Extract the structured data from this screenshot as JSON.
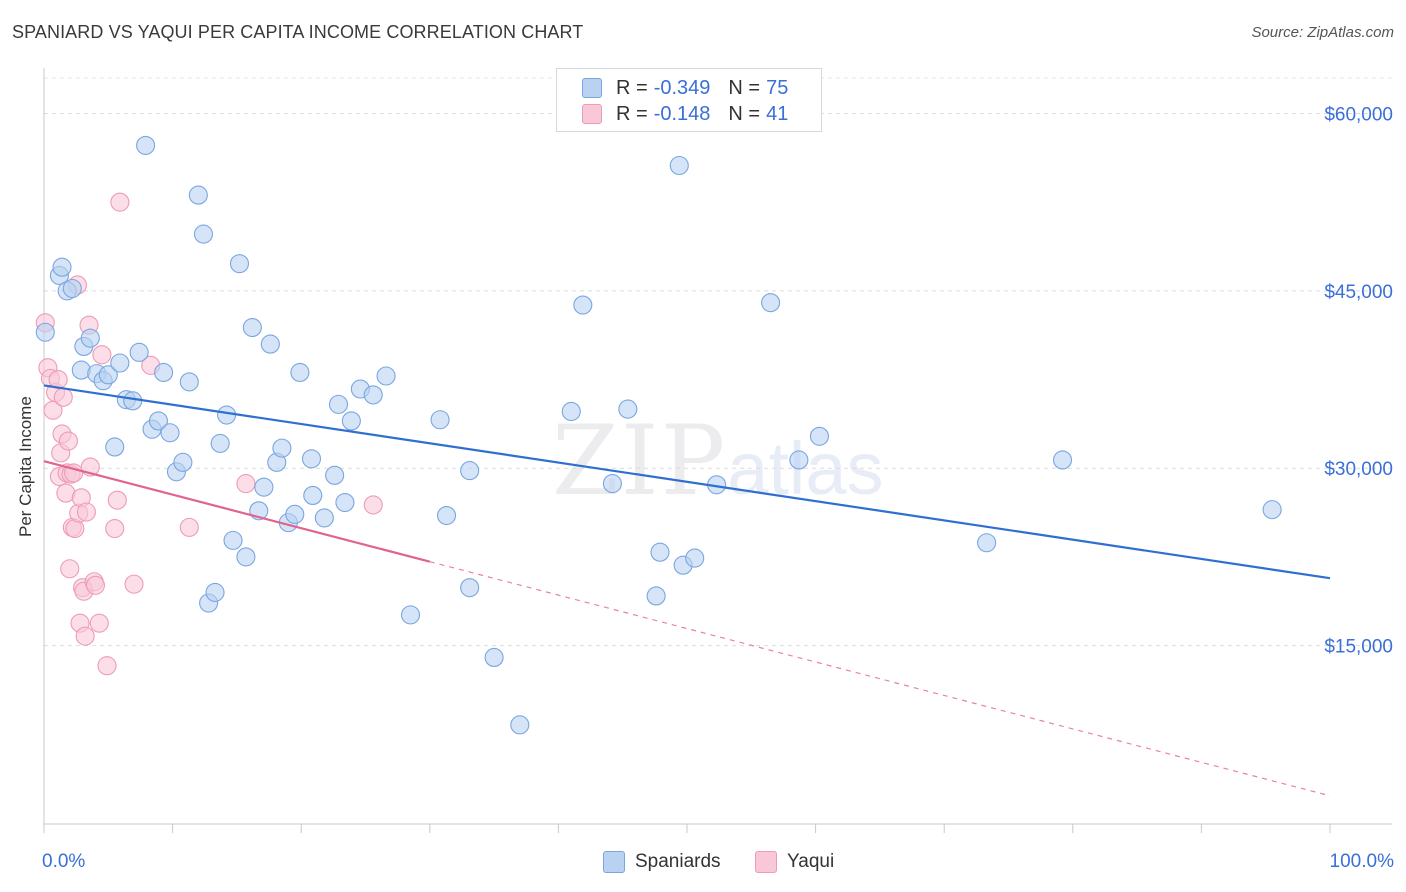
{
  "header": {
    "title": "SPANIARD VS YAQUI PER CAPITA INCOME CORRELATION CHART",
    "source": "Source: ZipAtlas.com"
  },
  "watermark": {
    "zip": "ZIP",
    "atlas": "atlas"
  },
  "legend": {
    "rows": [
      {
        "r_label": "R = ",
        "r_value": "-0.349",
        "n_label": "N = ",
        "n_value": "75",
        "color": "#a9c8f0"
      },
      {
        "r_label": "R = ",
        "r_value": "-0.148",
        "n_label": "N = ",
        "n_value": "41",
        "color": "#f5b8cc"
      }
    ]
  },
  "chart_data": {
    "type": "scatter",
    "title": "SPANIARD VS YAQUI PER CAPITA INCOME CORRELATION CHART",
    "ylabel": "Per Capita Income",
    "xlim": [
      0,
      100
    ],
    "ylim": [
      0,
      63000
    ],
    "x_tick_labels": [
      "0.0%",
      "100.0%"
    ],
    "y_ticks": [
      {
        "value": 15000,
        "label": "$15,000"
      },
      {
        "value": 30000,
        "label": "$30,000"
      },
      {
        "value": 45000,
        "label": "$45,000"
      },
      {
        "value": 60000,
        "label": "$60,000"
      }
    ],
    "grid": true,
    "legend_position": "bottom-center",
    "series": [
      {
        "name": "Spaniards",
        "color": "#7aa6e0",
        "fill": "#b9d2f2",
        "trend": {
          "x0": 0,
          "y0": 37000,
          "x1": 100,
          "y1": 20700,
          "color": "#2e6fd0"
        },
        "points": [
          [
            0.1,
            41500
          ],
          [
            1.2,
            46300
          ],
          [
            1.4,
            47000
          ],
          [
            1.8,
            45000
          ],
          [
            2.2,
            45200
          ],
          [
            2.9,
            38300
          ],
          [
            3.1,
            40300
          ],
          [
            3.6,
            41000
          ],
          [
            4.1,
            38000
          ],
          [
            4.6,
            37400
          ],
          [
            5.0,
            37900
          ],
          [
            5.5,
            31800
          ],
          [
            5.9,
            38900
          ],
          [
            6.4,
            35800
          ],
          [
            6.9,
            35700
          ],
          [
            7.4,
            39800
          ],
          [
            7.9,
            57300
          ],
          [
            8.4,
            33300
          ],
          [
            8.9,
            34000
          ],
          [
            9.3,
            38100
          ],
          [
            9.8,
            33000
          ],
          [
            10.3,
            29700
          ],
          [
            10.8,
            30500
          ],
          [
            11.3,
            37300
          ],
          [
            12.0,
            53100
          ],
          [
            12.4,
            49800
          ],
          [
            12.8,
            18600
          ],
          [
            13.3,
            19500
          ],
          [
            13.7,
            32100
          ],
          [
            14.2,
            34500
          ],
          [
            14.7,
            23900
          ],
          [
            15.2,
            47300
          ],
          [
            15.7,
            22500
          ],
          [
            16.2,
            41900
          ],
          [
            16.7,
            26400
          ],
          [
            17.1,
            28400
          ],
          [
            17.6,
            40500
          ],
          [
            18.1,
            30500
          ],
          [
            18.5,
            31700
          ],
          [
            19.0,
            25400
          ],
          [
            19.5,
            26100
          ],
          [
            19.9,
            38100
          ],
          [
            20.8,
            30800
          ],
          [
            20.9,
            27700
          ],
          [
            21.8,
            25800
          ],
          [
            22.6,
            29400
          ],
          [
            22.9,
            35400
          ],
          [
            23.4,
            27100
          ],
          [
            23.9,
            34000
          ],
          [
            24.6,
            36700
          ],
          [
            25.6,
            36200
          ],
          [
            26.6,
            37800
          ],
          [
            28.5,
            17600
          ],
          [
            30.8,
            34100
          ],
          [
            31.3,
            26000
          ],
          [
            33.1,
            19900
          ],
          [
            33.1,
            29800
          ],
          [
            35.0,
            14000
          ],
          [
            37.0,
            8300
          ],
          [
            41.0,
            34800
          ],
          [
            41.9,
            43800
          ],
          [
            44.2,
            28700
          ],
          [
            45.4,
            35000
          ],
          [
            47.6,
            19200
          ],
          [
            47.9,
            22900
          ],
          [
            49.4,
            55600
          ],
          [
            49.7,
            21800
          ],
          [
            50.6,
            22400
          ],
          [
            52.3,
            28600
          ],
          [
            56.5,
            44000
          ],
          [
            58.7,
            30700
          ],
          [
            60.3,
            32700
          ],
          [
            73.3,
            23700
          ],
          [
            79.2,
            30700
          ],
          [
            95.5,
            26500
          ]
        ]
      },
      {
        "name": "Yaqui",
        "color": "#ee9bb6",
        "fill": "#f8c8d8",
        "trend": {
          "x0": 0,
          "y0": 30600,
          "x1": 30,
          "y1": 22100,
          "color": "#e0648f",
          "ext_x1": 100,
          "ext_y1": 2300
        },
        "points": [
          [
            0.1,
            42300
          ],
          [
            0.3,
            38500
          ],
          [
            0.5,
            37600
          ],
          [
            0.7,
            34900
          ],
          [
            0.9,
            36400
          ],
          [
            1.1,
            37500
          ],
          [
            1.2,
            29300
          ],
          [
            1.3,
            31300
          ],
          [
            1.4,
            32900
          ],
          [
            1.5,
            36000
          ],
          [
            1.7,
            27900
          ],
          [
            1.8,
            29600
          ],
          [
            1.9,
            32300
          ],
          [
            2.0,
            21500
          ],
          [
            2.1,
            29500
          ],
          [
            2.2,
            25000
          ],
          [
            2.3,
            29600
          ],
          [
            2.4,
            24900
          ],
          [
            2.6,
            45500
          ],
          [
            2.7,
            26200
          ],
          [
            2.8,
            16900
          ],
          [
            2.9,
            27500
          ],
          [
            3.0,
            19900
          ],
          [
            3.1,
            19600
          ],
          [
            3.2,
            15800
          ],
          [
            3.3,
            26300
          ],
          [
            3.5,
            42100
          ],
          [
            3.6,
            30100
          ],
          [
            3.9,
            20400
          ],
          [
            4.0,
            20100
          ],
          [
            4.3,
            16900
          ],
          [
            4.5,
            39600
          ],
          [
            4.9,
            13300
          ],
          [
            5.5,
            24900
          ],
          [
            5.7,
            27300
          ],
          [
            5.9,
            52500
          ],
          [
            7.0,
            20200
          ],
          [
            8.3,
            38700
          ],
          [
            11.3,
            25000
          ],
          [
            15.7,
            28700
          ],
          [
            25.6,
            26900
          ]
        ]
      }
    ]
  }
}
